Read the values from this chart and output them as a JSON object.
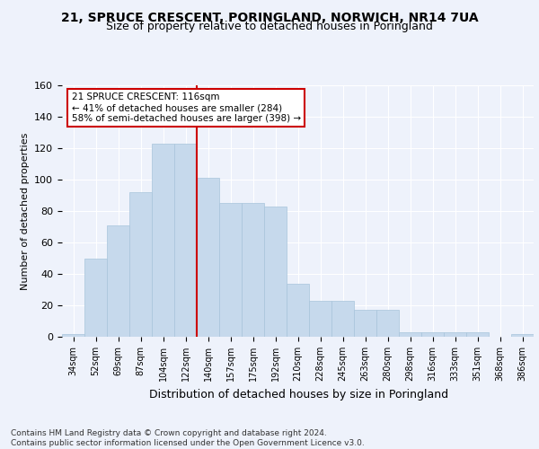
{
  "title": "21, SPRUCE CRESCENT, PORINGLAND, NORWICH, NR14 7UA",
  "subtitle": "Size of property relative to detached houses in Poringland",
  "xlabel": "Distribution of detached houses by size in Poringland",
  "ylabel": "Number of detached properties",
  "bar_color": "#c6d9ec",
  "bar_edge_color": "#a8c4db",
  "categories": [
    "34sqm",
    "52sqm",
    "69sqm",
    "87sqm",
    "104sqm",
    "122sqm",
    "140sqm",
    "157sqm",
    "175sqm",
    "192sqm",
    "210sqm",
    "228sqm",
    "245sqm",
    "263sqm",
    "280sqm",
    "298sqm",
    "316sqm",
    "333sqm",
    "351sqm",
    "368sqm",
    "386sqm"
  ],
  "values": [
    2,
    50,
    71,
    92,
    123,
    123,
    101,
    85,
    85,
    83,
    34,
    23,
    23,
    17,
    17,
    3,
    3,
    3,
    3,
    0,
    2
  ],
  "ylim": [
    0,
    160
  ],
  "yticks": [
    0,
    20,
    40,
    60,
    80,
    100,
    120,
    140,
    160
  ],
  "property_line_x": 5.5,
  "annotation_text": "21 SPRUCE CRESCENT: 116sqm\n← 41% of detached houses are smaller (284)\n58% of semi-detached houses are larger (398) →",
  "annotation_box_color": "#ffffff",
  "annotation_box_edge_color": "#cc0000",
  "vline_color": "#cc0000",
  "footer_text": "Contains HM Land Registry data © Crown copyright and database right 2024.\nContains public sector information licensed under the Open Government Licence v3.0.",
  "bg_color": "#eef2fb",
  "grid_color": "#ffffff"
}
